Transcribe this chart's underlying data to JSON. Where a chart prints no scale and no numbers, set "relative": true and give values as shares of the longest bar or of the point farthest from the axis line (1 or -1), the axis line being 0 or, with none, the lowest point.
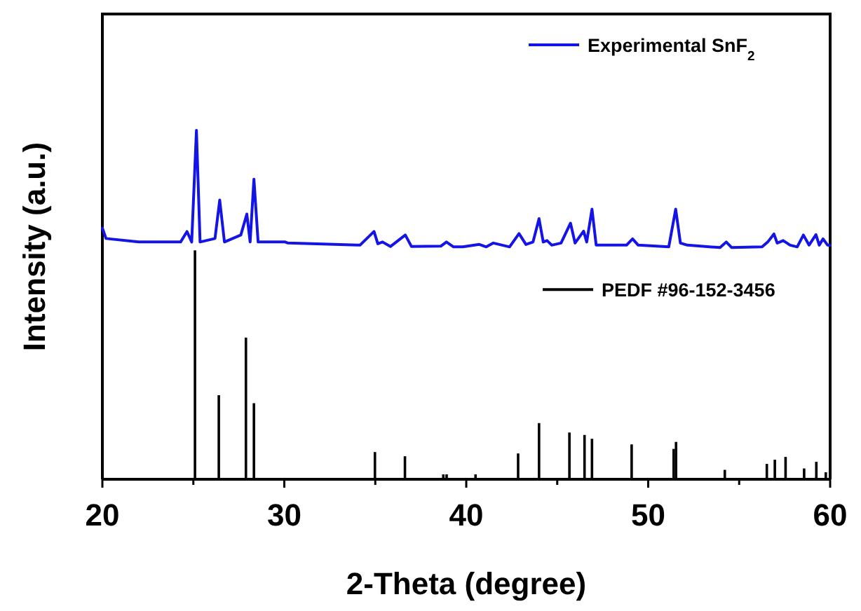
{
  "chart_data": {
    "type": "line",
    "xlabel": "2-Theta (degree)",
    "ylabel": "Intensity (a.u.)",
    "relative": true,
    "legend": "top right",
    "tick_labels": "x",
    "xlim": [
      20,
      60
    ],
    "xticks": [
      20,
      {
        "value": 25,
        "label": null
      },
      30,
      {
        "value": 35,
        "label": null
      },
      40,
      {
        "value": 45,
        "label": null
      },
      50,
      {
        "value": 55,
        "label": null
      },
      60
    ],
    "series": [
      {
        "name": "Experimental SnF$_{2}$",
        "color": "#1414e6",
        "x": [
          20.0,
          20.2,
          22.0,
          24.3,
          24.65,
          24.91,
          25.17,
          25.37,
          26.19,
          26.45,
          26.71,
          27.61,
          27.94,
          28.12,
          28.33,
          28.56,
          29.9,
          30.05,
          30.2,
          34.16,
          34.93,
          35.14,
          35.4,
          35.83,
          36.65,
          36.99,
          38.6,
          38.91,
          39.3,
          39.81,
          40.72,
          41.1,
          41.49,
          42.38,
          42.9,
          43.28,
          43.67,
          44.0,
          44.23,
          44.44,
          44.7,
          45.21,
          45.73,
          45.98,
          46.45,
          46.62,
          46.91,
          47.14,
          48.81,
          49.14,
          49.45,
          51.13,
          51.51,
          51.77,
          52.15,
          53.95,
          54.29,
          54.59,
          56.26,
          56.57,
          56.91,
          57.09,
          57.42,
          57.8,
          58.19,
          58.53,
          58.84,
          59.22,
          59.4,
          59.61,
          59.86,
          60.0
        ],
        "values": [
          0.72,
          0.69,
          0.68,
          0.68,
          0.71,
          0.68,
          1.0,
          0.68,
          0.69,
          0.8,
          0.68,
          0.7,
          0.76,
          0.68,
          0.86,
          0.68,
          0.68,
          0.68,
          0.677,
          0.671,
          0.71,
          0.675,
          0.68,
          0.667,
          0.7,
          0.667,
          0.668,
          0.68,
          0.666,
          0.666,
          0.673,
          0.666,
          0.677,
          0.666,
          0.704,
          0.673,
          0.68,
          0.747,
          0.68,
          0.684,
          0.671,
          0.677,
          0.734,
          0.677,
          0.711,
          0.68,
          0.774,
          0.671,
          0.671,
          0.689,
          0.671,
          0.666,
          0.774,
          0.677,
          0.671,
          0.664,
          0.68,
          0.664,
          0.666,
          0.68,
          0.703,
          0.677,
          0.684,
          0.671,
          0.666,
          0.7,
          0.671,
          0.701,
          0.671,
          0.689,
          0.671,
          0.67
        ]
      },
      {
        "name": "PEDF #96-152-3456",
        "color": "#000000",
        "type": "bar",
        "x": [
          25.09,
          26.4,
          27.89,
          28.33,
          34.98,
          36.63,
          38.74,
          38.92,
          40.51,
          42.85,
          44.0,
          45.67,
          46.5,
          46.91,
          49.09,
          51.4,
          51.53,
          54.21,
          56.52,
          56.96,
          57.55,
          58.57,
          59.24,
          59.76
        ],
        "values": [
          0.656,
          0.241,
          0.406,
          0.218,
          0.078,
          0.066,
          0.014,
          0.014,
          0.014,
          0.074,
          0.161,
          0.134,
          0.127,
          0.116,
          0.1,
          0.087,
          0.107,
          0.027,
          0.044,
          0.056,
          0.064,
          0.031,
          0.05,
          0.02
        ]
      }
    ]
  }
}
